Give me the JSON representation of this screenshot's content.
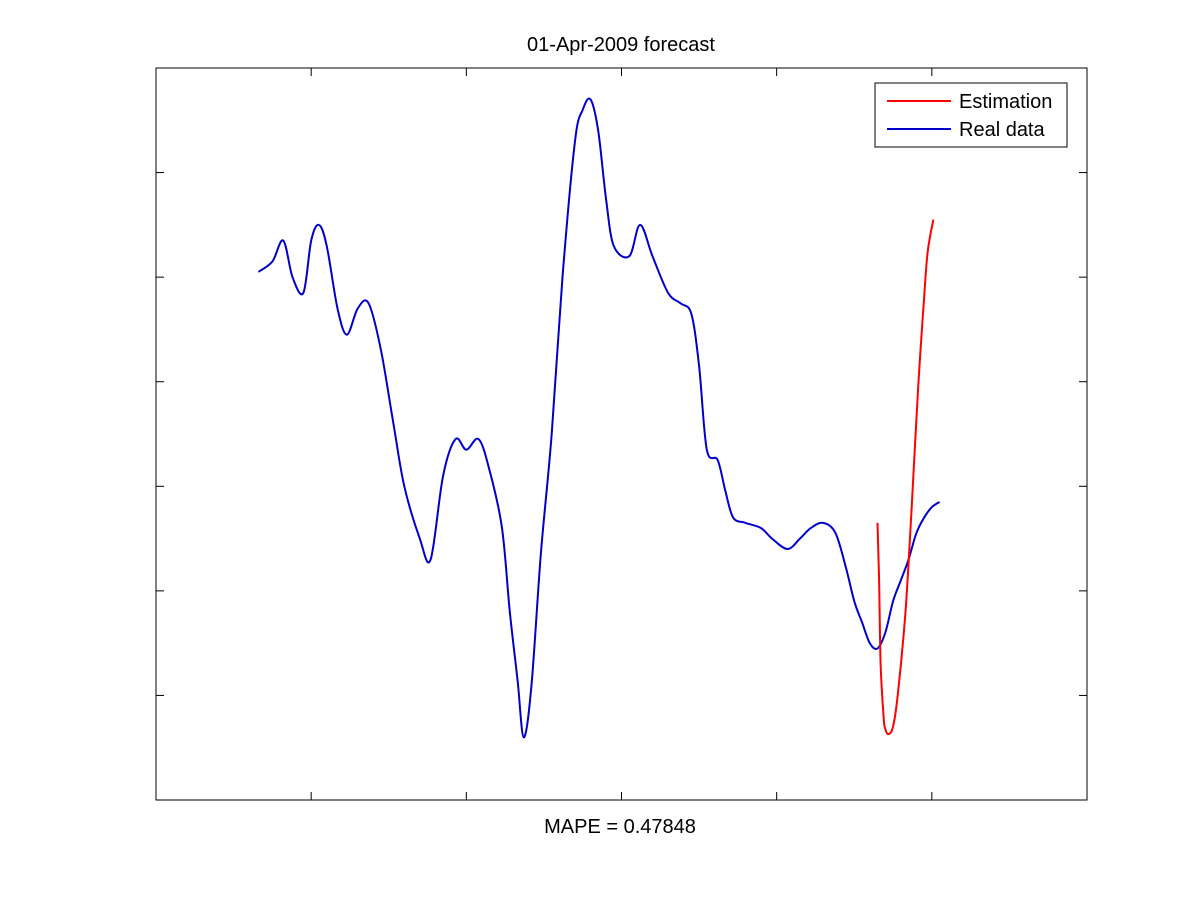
{
  "chart_data": {
    "type": "line",
    "title": "01-Apr-2009 forecast",
    "xlabel": "MAPE = 0.47848",
    "ylabel": "",
    "xlim": [
      0,
      6
    ],
    "ylim": [
      0,
      7
    ],
    "xticks": [
      1,
      2,
      3,
      4,
      5
    ],
    "yticks": [
      1,
      2,
      3,
      4,
      5,
      6
    ],
    "tick_labels_shown": false,
    "grid": false,
    "legend_position": "top-right",
    "series": [
      {
        "name": "Estimation",
        "color": "#ff0000",
        "x": [
          4.65,
          4.66,
          4.67,
          4.69,
          4.7,
          4.72,
          4.75,
          4.78,
          4.83,
          4.87,
          4.91,
          4.95,
          4.97,
          4.99,
          5.01
        ],
        "y": [
          2.65,
          2.1,
          1.3,
          0.78,
          0.68,
          0.63,
          0.7,
          1.0,
          1.8,
          2.8,
          3.9,
          4.8,
          5.2,
          5.4,
          5.55
        ]
      },
      {
        "name": "Real data",
        "color": "#0000cc",
        "x": [
          0.66,
          0.75,
          0.82,
          0.88,
          0.95,
          1.0,
          1.05,
          1.1,
          1.17,
          1.23,
          1.3,
          1.37,
          1.45,
          1.53,
          1.6,
          1.7,
          1.77,
          1.85,
          1.93,
          2.0,
          2.08,
          2.15,
          2.23,
          2.28,
          2.33,
          2.37,
          2.42,
          2.48,
          2.55,
          2.62,
          2.7,
          2.75,
          2.8,
          2.85,
          2.9,
          2.95,
          3.05,
          3.12,
          3.2,
          3.3,
          3.38,
          3.45,
          3.5,
          3.55,
          3.62,
          3.67,
          3.72,
          3.8,
          3.9,
          3.97,
          4.07,
          4.15,
          4.22,
          4.3,
          4.38,
          4.45,
          4.5,
          4.55,
          4.6,
          4.65,
          4.7,
          4.75,
          4.8,
          4.85,
          4.9,
          4.95,
          5.0,
          5.05
        ],
        "y": [
          5.05,
          5.15,
          5.35,
          5.0,
          4.85,
          5.35,
          5.5,
          5.3,
          4.7,
          4.45,
          4.7,
          4.75,
          4.3,
          3.6,
          3.0,
          2.5,
          2.3,
          3.1,
          3.45,
          3.35,
          3.45,
          3.15,
          2.6,
          1.8,
          1.15,
          0.6,
          1.1,
          2.35,
          3.5,
          5.0,
          6.3,
          6.6,
          6.7,
          6.4,
          5.75,
          5.3,
          5.2,
          5.5,
          5.2,
          4.85,
          4.75,
          4.65,
          4.15,
          3.35,
          3.25,
          2.95,
          2.7,
          2.65,
          2.6,
          2.5,
          2.4,
          2.5,
          2.6,
          2.65,
          2.55,
          2.2,
          1.9,
          1.7,
          1.5,
          1.45,
          1.6,
          1.9,
          2.1,
          2.3,
          2.55,
          2.7,
          2.8,
          2.85
        ]
      }
    ]
  }
}
